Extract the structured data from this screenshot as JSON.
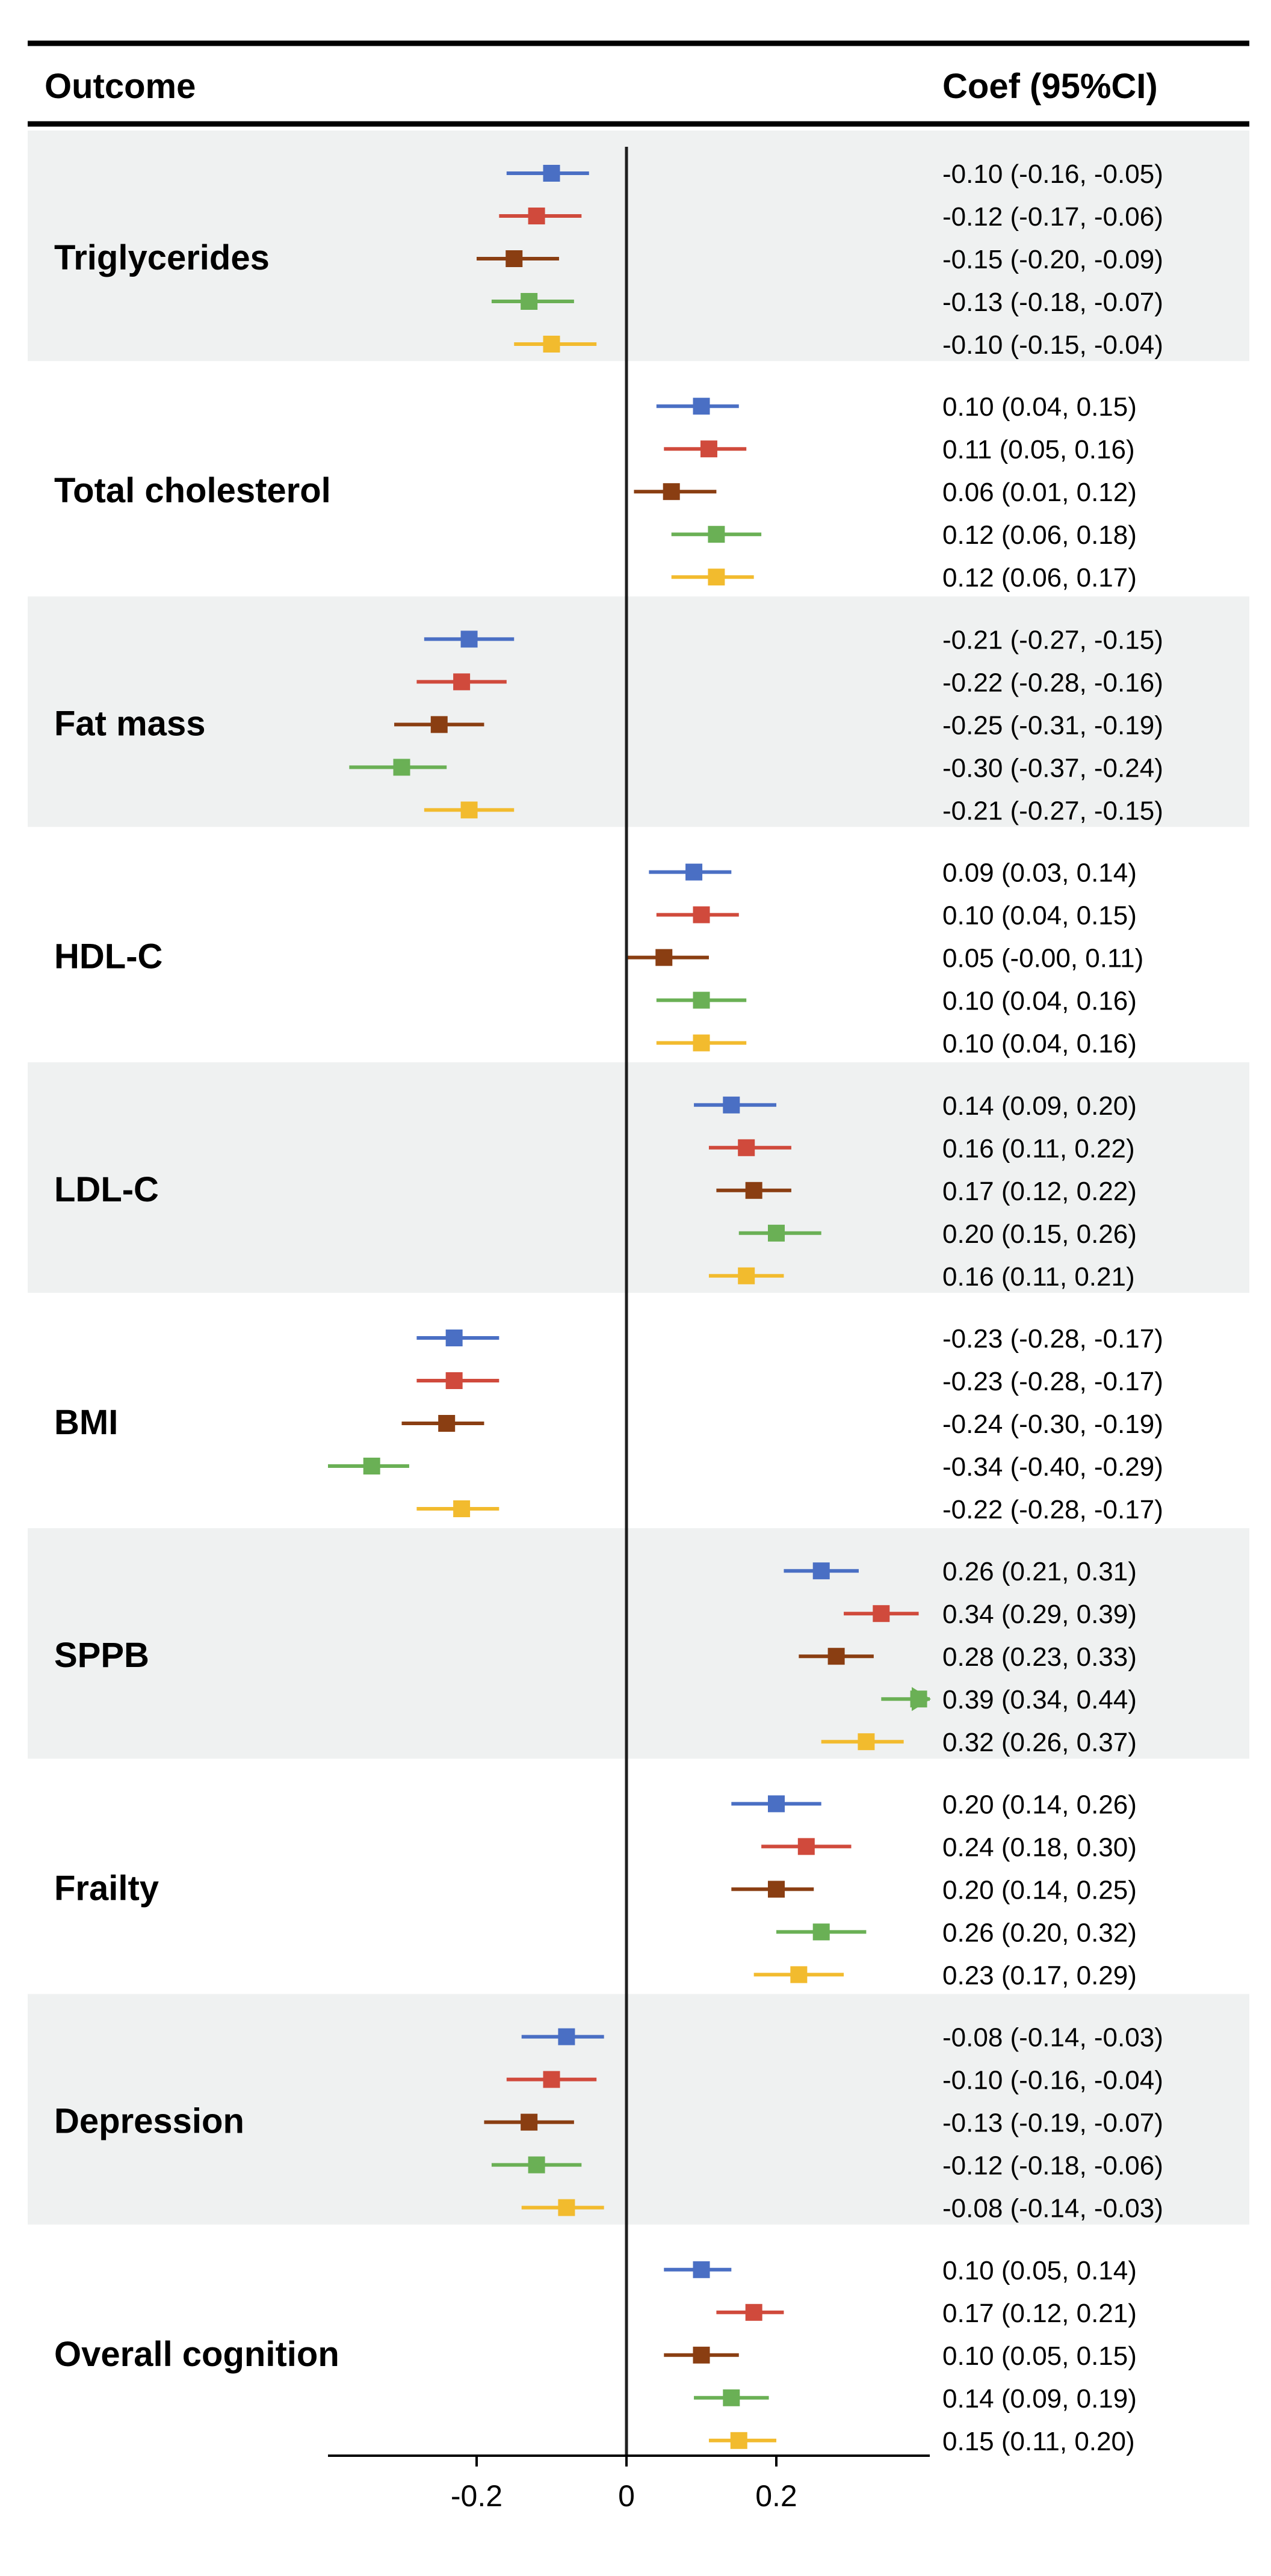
{
  "header": {
    "left": "Outcome",
    "right": "Coef (95%CI)"
  },
  "colors": {
    "series": [
      "#4a6fc4",
      "#d04a3c",
      "#8a3e12",
      "#6ab055",
      "#f2bb2e"
    ],
    "band": "#eff1f1",
    "axis": "#1f1f1f"
  },
  "chart_data": {
    "type": "forest",
    "xlim": [
      -0.4,
      0.4
    ],
    "xticks": [
      -0.2,
      0,
      0.2
    ],
    "xtick_labels": [
      "-0.2",
      "0",
      "0.2"
    ],
    "reference_line": 0,
    "clipped_marker": "arrow",
    "outcomes": [
      {
        "name": "Triglycerides",
        "shaded": true,
        "estimates": [
          {
            "coef": -0.1,
            "lo": -0.16,
            "hi": -0.05,
            "text": "-0.10 (-0.16, -0.05)"
          },
          {
            "coef": -0.12,
            "lo": -0.17,
            "hi": -0.06,
            "text": "-0.12 (-0.17, -0.06)"
          },
          {
            "coef": -0.15,
            "lo": -0.2,
            "hi": -0.09,
            "text": "-0.15 (-0.20, -0.09)"
          },
          {
            "coef": -0.13,
            "lo": -0.18,
            "hi": -0.07,
            "text": "-0.13 (-0.18, -0.07)"
          },
          {
            "coef": -0.1,
            "lo": -0.15,
            "hi": -0.04,
            "text": "-0.10 (-0.15, -0.04)"
          }
        ]
      },
      {
        "name": "Total cholesterol",
        "shaded": false,
        "estimates": [
          {
            "coef": 0.1,
            "lo": 0.04,
            "hi": 0.15,
            "text": "0.10 (0.04, 0.15)"
          },
          {
            "coef": 0.11,
            "lo": 0.05,
            "hi": 0.16,
            "text": "0.11 (0.05, 0.16)"
          },
          {
            "coef": 0.06,
            "lo": 0.01,
            "hi": 0.12,
            "text": "0.06 (0.01, 0.12)"
          },
          {
            "coef": 0.12,
            "lo": 0.06,
            "hi": 0.18,
            "text": "0.12 (0.06, 0.18)"
          },
          {
            "coef": 0.12,
            "lo": 0.06,
            "hi": 0.17,
            "text": "0.12 (0.06, 0.17)"
          }
        ]
      },
      {
        "name": "Fat mass",
        "shaded": true,
        "estimates": [
          {
            "coef": -0.21,
            "lo": -0.27,
            "hi": -0.15,
            "text": "-0.21 (-0.27, -0.15)"
          },
          {
            "coef": -0.22,
            "lo": -0.28,
            "hi": -0.16,
            "text": "-0.22 (-0.28, -0.16)"
          },
          {
            "coef": -0.25,
            "lo": -0.31,
            "hi": -0.19,
            "text": "-0.25 (-0.31, -0.19)"
          },
          {
            "coef": -0.3,
            "lo": -0.37,
            "hi": -0.24,
            "text": "-0.30 (-0.37, -0.24)"
          },
          {
            "coef": -0.21,
            "lo": -0.27,
            "hi": -0.15,
            "text": "-0.21 (-0.27, -0.15)"
          }
        ]
      },
      {
        "name": "HDL-C",
        "shaded": false,
        "estimates": [
          {
            "coef": 0.09,
            "lo": 0.03,
            "hi": 0.14,
            "text": "0.09 (0.03, 0.14)"
          },
          {
            "coef": 0.1,
            "lo": 0.04,
            "hi": 0.15,
            "text": "0.10 (0.04, 0.15)"
          },
          {
            "coef": 0.05,
            "lo": -0.0,
            "hi": 0.11,
            "text": "0.05 (-0.00, 0.11)"
          },
          {
            "coef": 0.1,
            "lo": 0.04,
            "hi": 0.16,
            "text": "0.10 (0.04, 0.16)"
          },
          {
            "coef": 0.1,
            "lo": 0.04,
            "hi": 0.16,
            "text": "0.10 (0.04, 0.16)"
          }
        ]
      },
      {
        "name": "LDL-C",
        "shaded": true,
        "estimates": [
          {
            "coef": 0.14,
            "lo": 0.09,
            "hi": 0.2,
            "text": "0.14 (0.09, 0.20)"
          },
          {
            "coef": 0.16,
            "lo": 0.11,
            "hi": 0.22,
            "text": "0.16 (0.11, 0.22)"
          },
          {
            "coef": 0.17,
            "lo": 0.12,
            "hi": 0.22,
            "text": "0.17 (0.12, 0.22)"
          },
          {
            "coef": 0.2,
            "lo": 0.15,
            "hi": 0.26,
            "text": "0.20 (0.15, 0.26)"
          },
          {
            "coef": 0.16,
            "lo": 0.11,
            "hi": 0.21,
            "text": "0.16 (0.11, 0.21)"
          }
        ]
      },
      {
        "name": "BMI",
        "shaded": false,
        "estimates": [
          {
            "coef": -0.23,
            "lo": -0.28,
            "hi": -0.17,
            "text": "-0.23 (-0.28, -0.17)"
          },
          {
            "coef": -0.23,
            "lo": -0.28,
            "hi": -0.17,
            "text": "-0.23 (-0.28, -0.17)"
          },
          {
            "coef": -0.24,
            "lo": -0.3,
            "hi": -0.19,
            "text": "-0.24 (-0.30, -0.19)"
          },
          {
            "coef": -0.34,
            "lo": -0.4,
            "hi": -0.29,
            "text": "-0.34 (-0.40, -0.29)"
          },
          {
            "coef": -0.22,
            "lo": -0.28,
            "hi": -0.17,
            "text": "-0.22 (-0.28, -0.17)"
          }
        ]
      },
      {
        "name": "SPPB",
        "shaded": true,
        "estimates": [
          {
            "coef": 0.26,
            "lo": 0.21,
            "hi": 0.31,
            "text": "0.26 (0.21, 0.31)"
          },
          {
            "coef": 0.34,
            "lo": 0.29,
            "hi": 0.39,
            "text": "0.34 (0.29, 0.39)"
          },
          {
            "coef": 0.28,
            "lo": 0.23,
            "hi": 0.33,
            "text": "0.28 (0.23, 0.33)"
          },
          {
            "coef": 0.39,
            "lo": 0.34,
            "hi": 0.44,
            "text": "0.39 (0.34, 0.44)"
          },
          {
            "coef": 0.32,
            "lo": 0.26,
            "hi": 0.37,
            "text": "0.32 (0.26, 0.37)"
          }
        ]
      },
      {
        "name": "Frailty",
        "shaded": false,
        "estimates": [
          {
            "coef": 0.2,
            "lo": 0.14,
            "hi": 0.26,
            "text": "0.20 (0.14, 0.26)"
          },
          {
            "coef": 0.24,
            "lo": 0.18,
            "hi": 0.3,
            "text": "0.24 (0.18, 0.30)"
          },
          {
            "coef": 0.2,
            "lo": 0.14,
            "hi": 0.25,
            "text": "0.20 (0.14, 0.25)"
          },
          {
            "coef": 0.26,
            "lo": 0.2,
            "hi": 0.32,
            "text": "0.26 (0.20, 0.32)"
          },
          {
            "coef": 0.23,
            "lo": 0.17,
            "hi": 0.29,
            "text": "0.23 (0.17, 0.29)"
          }
        ]
      },
      {
        "name": "Depression",
        "shaded": true,
        "estimates": [
          {
            "coef": -0.08,
            "lo": -0.14,
            "hi": -0.03,
            "text": "-0.08 (-0.14, -0.03)"
          },
          {
            "coef": -0.1,
            "lo": -0.16,
            "hi": -0.04,
            "text": "-0.10 (-0.16, -0.04)"
          },
          {
            "coef": -0.13,
            "lo": -0.19,
            "hi": -0.07,
            "text": "-0.13 (-0.19, -0.07)"
          },
          {
            "coef": -0.12,
            "lo": -0.18,
            "hi": -0.06,
            "text": "-0.12 (-0.18, -0.06)"
          },
          {
            "coef": -0.08,
            "lo": -0.14,
            "hi": -0.03,
            "text": "-0.08 (-0.14, -0.03)"
          }
        ]
      },
      {
        "name": "Overall cognition",
        "shaded": false,
        "estimates": [
          {
            "coef": 0.1,
            "lo": 0.05,
            "hi": 0.14,
            "text": "0.10 (0.05, 0.14)"
          },
          {
            "coef": 0.17,
            "lo": 0.12,
            "hi": 0.21,
            "text": "0.17 (0.12, 0.21)"
          },
          {
            "coef": 0.1,
            "lo": 0.05,
            "hi": 0.15,
            "text": "0.10 (0.05, 0.15)"
          },
          {
            "coef": 0.14,
            "lo": 0.09,
            "hi": 0.19,
            "text": "0.14 (0.09, 0.19)"
          },
          {
            "coef": 0.15,
            "lo": 0.11,
            "hi": 0.2,
            "text": "0.15 (0.11, 0.20)"
          }
        ]
      }
    ]
  }
}
